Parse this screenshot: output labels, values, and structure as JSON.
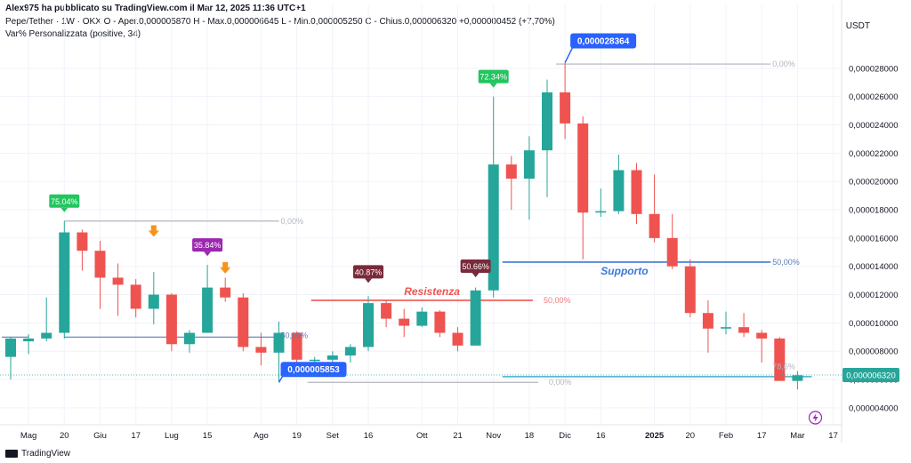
{
  "header": {
    "published": "Alex975 ha pubblicato su TradingView.com il Mar 12, 2025 11:36 UTC+1",
    "symbol": "Pepe/Tether · 1W · OKX",
    "ohlc_text": "O - Aper.0,000005870  H - Max.0,000006645  L - Min.0,000005250  C - Chius.0,000006320  +0,000000452 (+7,70%)",
    "indicator": "Var% Personalizzata (positive, 34)",
    "currency": "USDT"
  },
  "brand": {
    "name": "TradingView"
  },
  "colors": {
    "up": "#26a69a",
    "down": "#ef5350",
    "grid": "#f0f3fa",
    "green_label": "#22c55e",
    "purple_label": "#9c27b0",
    "maroon_label": "#7a2a3a",
    "blue_label": "#2962ff"
  },
  "chart_data": {
    "type": "candlestick",
    "ylim": [
      2.8e-06,
      3e-05
    ],
    "y_ticks": [
      "0,000004000",
      "0,000006000",
      "0,000008000",
      "0,000010000",
      "0,000012000",
      "0,000014000",
      "0,000016000",
      "0,000018000",
      "0,000020000",
      "0,000022000",
      "0,000024000",
      "0,000026000",
      "0,000028000"
    ],
    "y_tick_values": [
      4e-06,
      6e-06,
      8e-06,
      1e-05,
      1.2e-05,
      1.4e-05,
      1.6e-05,
      1.8e-05,
      2e-05,
      2.2e-05,
      2.4e-05,
      2.6e-05,
      2.8e-05
    ],
    "x_labels": [
      {
        "label": "Mag",
        "i": 1
      },
      {
        "label": "20",
        "i": 3
      },
      {
        "label": "Giu",
        "i": 5
      },
      {
        "label": "17",
        "i": 7
      },
      {
        "label": "Lug",
        "i": 9
      },
      {
        "label": "15",
        "i": 11
      },
      {
        "label": "Ago",
        "i": 14
      },
      {
        "label": "19",
        "i": 16
      },
      {
        "label": "Set",
        "i": 18
      },
      {
        "label": "16",
        "i": 20
      },
      {
        "label": "Ott",
        "i": 23
      },
      {
        "label": "21",
        "i": 25
      },
      {
        "label": "Nov",
        "i": 27
      },
      {
        "label": "18",
        "i": 29
      },
      {
        "label": "Dic",
        "i": 31
      },
      {
        "label": "16",
        "i": 33
      },
      {
        "label": "2025",
        "i": 36
      },
      {
        "label": "20",
        "i": 38
      },
      {
        "label": "Feb",
        "i": 40
      },
      {
        "label": "17",
        "i": 42
      },
      {
        "label": "Mar",
        "i": 44
      },
      {
        "label": "17",
        "i": 46
      }
    ],
    "candles": [
      {
        "o": 7.6e-06,
        "h": 9e-06,
        "l": 6e-06,
        "c": 8.9e-06
      },
      {
        "o": 8.7e-06,
        "h": 9.2e-06,
        "l": 7.8e-06,
        "c": 8.9e-06
      },
      {
        "o": 8.9e-06,
        "h": 1.18e-05,
        "l": 8.7e-06,
        "c": 9.3e-06
      },
      {
        "o": 9.3e-06,
        "h": 1.72e-05,
        "l": 8.9e-06,
        "c": 1.64e-05
      },
      {
        "o": 1.64e-05,
        "h": 1.66e-05,
        "l": 1.37e-05,
        "c": 1.51e-05
      },
      {
        "o": 1.51e-05,
        "h": 1.58e-05,
        "l": 1.1e-05,
        "c": 1.32e-05
      },
      {
        "o": 1.32e-05,
        "h": 1.42e-05,
        "l": 1.05e-05,
        "c": 1.27e-05
      },
      {
        "o": 1.27e-05,
        "h": 1.31e-05,
        "l": 1.04e-05,
        "c": 1.1e-05
      },
      {
        "o": 1.1e-05,
        "h": 1.36e-05,
        "l": 9.9e-06,
        "c": 1.2e-05
      },
      {
        "o": 1.2e-05,
        "h": 1.21e-05,
        "l": 8e-06,
        "c": 8.5e-06
      },
      {
        "o": 8.5e-06,
        "h": 9.5e-06,
        "l": 7.9e-06,
        "c": 9.3e-06
      },
      {
        "o": 9.3e-06,
        "h": 1.41e-05,
        "l": 9.3e-06,
        "c": 1.25e-05
      },
      {
        "o": 1.25e-05,
        "h": 1.32e-05,
        "l": 1.15e-05,
        "c": 1.18e-05
      },
      {
        "o": 1.18e-05,
        "h": 1.21e-05,
        "l": 8e-06,
        "c": 8.3e-06
      },
      {
        "o": 8.3e-06,
        "h": 9.3e-06,
        "l": 7e-06,
        "c": 7.9e-06
      },
      {
        "o": 7.9e-06,
        "h": 1.01e-05,
        "l": 5.8e-06,
        "c": 9.3e-06
      },
      {
        "o": 9.3e-06,
        "h": 9.4e-06,
        "l": 7.1e-06,
        "c": 7.4e-06
      },
      {
        "o": 7.4e-06,
        "h": 7.6e-06,
        "l": 7e-06,
        "c": 7.4e-06
      },
      {
        "o": 7.4e-06,
        "h": 8e-06,
        "l": 7e-06,
        "c": 7.7e-06
      },
      {
        "o": 7.7e-06,
        "h": 8.5e-06,
        "l": 7.2e-06,
        "c": 8.3e-06
      },
      {
        "o": 8.3e-06,
        "h": 1.19e-05,
        "l": 8e-06,
        "c": 1.14e-05
      },
      {
        "o": 1.14e-05,
        "h": 1.16e-05,
        "l": 9.7e-06,
        "c": 1.03e-05
      },
      {
        "o": 1.03e-05,
        "h": 1.1e-05,
        "l": 9e-06,
        "c": 9.8e-06
      },
      {
        "o": 9.8e-06,
        "h": 1.11e-05,
        "l": 9.7e-06,
        "c": 1.08e-05
      },
      {
        "o": 1.08e-05,
        "h": 1.09e-05,
        "l": 9e-06,
        "c": 9.3e-06
      },
      {
        "o": 9.3e-06,
        "h": 9.7e-06,
        "l": 8e-06,
        "c": 8.4e-06
      },
      {
        "o": 8.4e-06,
        "h": 1.25e-05,
        "l": 8.4e-06,
        "c": 1.23e-05
      },
      {
        "o": 1.23e-05,
        "h": 2.6e-05,
        "l": 1.18e-05,
        "c": 2.12e-05
      },
      {
        "o": 2.12e-05,
        "h": 2.18e-05,
        "l": 1.8e-05,
        "c": 2.02e-05
      },
      {
        "o": 2.02e-05,
        "h": 2.32e-05,
        "l": 1.73e-05,
        "c": 2.22e-05
      },
      {
        "o": 2.22e-05,
        "h": 2.72e-05,
        "l": 1.89e-05,
        "c": 2.63e-05
      },
      {
        "o": 2.63e-05,
        "h": 2.84e-05,
        "l": 2.3e-05,
        "c": 2.41e-05
      },
      {
        "o": 2.41e-05,
        "h": 2.46e-05,
        "l": 1.45e-05,
        "c": 1.78e-05
      },
      {
        "o": 1.78e-05,
        "h": 1.95e-05,
        "l": 1.75e-05,
        "c": 1.79e-05
      },
      {
        "o": 1.79e-05,
        "h": 2.19e-05,
        "l": 1.77e-05,
        "c": 2.08e-05
      },
      {
        "o": 2.08e-05,
        "h": 2.13e-05,
        "l": 1.7e-05,
        "c": 1.77e-05
      },
      {
        "o": 1.77e-05,
        "h": 2.05e-05,
        "l": 1.57e-05,
        "c": 1.6e-05
      },
      {
        "o": 1.6e-05,
        "h": 1.77e-05,
        "l": 1.38e-05,
        "c": 1.4e-05
      },
      {
        "o": 1.4e-05,
        "h": 1.45e-05,
        "l": 1.04e-05,
        "c": 1.07e-05
      },
      {
        "o": 1.07e-05,
        "h": 1.16e-05,
        "l": 7.9e-06,
        "c": 9.6e-06
      },
      {
        "o": 9.6e-06,
        "h": 1.08e-05,
        "l": 9.2e-06,
        "c": 9.7e-06
      },
      {
        "o": 9.7e-06,
        "h": 1.07e-05,
        "l": 9e-06,
        "c": 9.3e-06
      },
      {
        "o": 9.3e-06,
        "h": 9.5e-06,
        "l": 7.2e-06,
        "c": 8.9e-06
      },
      {
        "o": 8.9e-06,
        "h": 9e-06,
        "l": 6e-06,
        "c": 5.9e-06
      },
      {
        "o": 5.9e-06,
        "h": 6.6e-06,
        "l": 5.3e-06,
        "c": 6.3e-06
      }
    ],
    "annotations": {
      "pct_labels": [
        {
          "text": "75.04%",
          "i": 3,
          "y": 1.72e-05,
          "color": "#22c55e"
        },
        {
          "text": "35.84%",
          "i": 11,
          "y": 1.41e-05,
          "color": "#9c27b0"
        },
        {
          "text": "40.87%",
          "i": 20,
          "y": 1.22e-05,
          "color": "#7a2a3a"
        },
        {
          "text": "50.66%",
          "i": 26,
          "y": 1.26e-05,
          "color": "#7a2a3a"
        },
        {
          "text": "72.34%",
          "i": 27,
          "y": 2.6e-05,
          "color": "#22c55e"
        }
      ],
      "price_labels": [
        {
          "text": "0,000028364",
          "i": 31,
          "y": 2.84e-05
        },
        {
          "text": "0,000005853",
          "i": 15,
          "y": 5.8e-06
        }
      ],
      "resistance": {
        "text": "Resistenza",
        "y": 1.16e-05,
        "i0": 16.8,
        "i1": 29.2
      },
      "support": {
        "text": "Supporto",
        "y": 1.43e-05,
        "i0": 27.5,
        "i1": 42.5
      },
      "fib_labels": [
        {
          "text": "0,00%",
          "i": 15,
          "y": 1.72e-05
        },
        {
          "text": "50,00%",
          "i": 15,
          "y": 9.1e-06
        },
        {
          "text": "0,00%",
          "i": 30,
          "y": 5.8e-06
        },
        {
          "text": "50,00%",
          "i": 29.7,
          "y": 1.16e-05
        },
        {
          "text": "0,00%",
          "i": 42.5,
          "y": 2.83e-05
        },
        {
          "text": "50,00%",
          "i": 42.5,
          "y": 1.43e-05
        },
        {
          "text": "78,6%",
          "i": 42.5,
          "y": 6.9e-06
        }
      ],
      "fib_lines": [
        {
          "i0": 3,
          "i1": 15,
          "y": 1.72e-05,
          "color": "#b2b5be"
        },
        {
          "i0": 3,
          "i1": 15,
          "y": 9e-06,
          "color": "#5b7db1"
        },
        {
          "i0": -0.5,
          "i1": 1,
          "y": 9e-06,
          "color": "#5b7db1"
        },
        {
          "i0": 16.6,
          "i1": 29.5,
          "y": 5.8e-06,
          "color": "#b2b5be"
        },
        {
          "i0": 30.5,
          "i1": 42.5,
          "y": 2.83e-05,
          "color": "#b2b5be"
        },
        {
          "i0": 27.5,
          "i1": 44.8,
          "y": 6.2e-06,
          "color": "#26a0c7"
        }
      ],
      "arrows": [
        {
          "i": 8,
          "y": 1.64e-05
        },
        {
          "i": 12,
          "y": 1.38e-05
        }
      ],
      "last_price": {
        "text": "0,000006320",
        "y": 6.32e-06
      }
    }
  }
}
